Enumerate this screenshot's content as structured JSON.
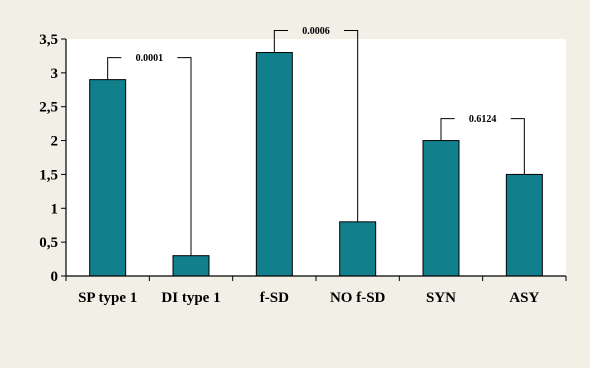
{
  "chart_data": {
    "type": "bar",
    "categories": [
      "SP type 1",
      "DI type 1",
      "f-SD",
      "NO f-SD",
      "SYN",
      "ASY"
    ],
    "values": [
      2.9,
      0.3,
      3.3,
      0.8,
      2.0,
      1.5
    ],
    "ylim": [
      0,
      3.5
    ],
    "yticks": [
      "0",
      "0,5",
      "1",
      "1,5",
      "2",
      "2,5",
      "3",
      "3,5"
    ],
    "grid": false,
    "bar_color": "#117f8c",
    "annotations": [
      {
        "label": "0.0001",
        "from": 0,
        "to": 1
      },
      {
        "label": "0.0006",
        "from": 2,
        "to": 3
      },
      {
        "label": "0.6124",
        "from": 4,
        "to": 5
      }
    ]
  }
}
